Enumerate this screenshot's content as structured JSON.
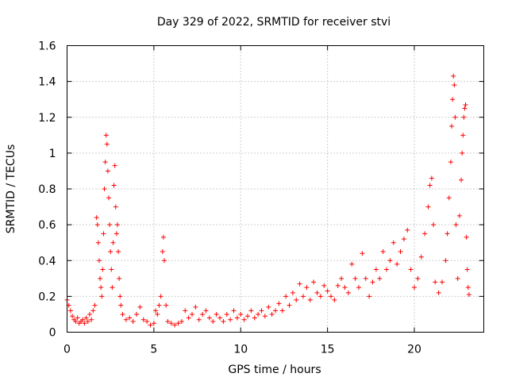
{
  "chart_data": {
    "type": "scatter",
    "title": "Day 329 of 2022, SRMTID for receiver stvi",
    "xlabel": "GPS time / hours",
    "ylabel": "SRMTID / TECUs",
    "xlim": [
      0,
      24
    ],
    "ylim": [
      0,
      1.6
    ],
    "xticks": [
      0,
      5,
      10,
      15,
      20
    ],
    "xtick_labels": [
      "0",
      "5",
      "10",
      "15",
      "20"
    ],
    "yticks": [
      0,
      0.2,
      0.4,
      0.6,
      0.8,
      1.0,
      1.2,
      1.4,
      1.6
    ],
    "ytick_labels": [
      "0",
      "0.2",
      "0.4",
      "0.6",
      "0.8",
      "1",
      "1.2",
      "1.4",
      "1.6"
    ],
    "grid": true,
    "marker": "+",
    "color": "#ff0000",
    "series": [
      {
        "name": "SRMTID",
        "points": [
          [
            0.0,
            0.18
          ],
          [
            0.1,
            0.15
          ],
          [
            0.2,
            0.12
          ],
          [
            0.3,
            0.09
          ],
          [
            0.4,
            0.07
          ],
          [
            0.5,
            0.06
          ],
          [
            0.6,
            0.08
          ],
          [
            0.7,
            0.05
          ],
          [
            0.8,
            0.06
          ],
          [
            0.9,
            0.07
          ],
          [
            1.0,
            0.05
          ],
          [
            1.1,
            0.08
          ],
          [
            1.2,
            0.06
          ],
          [
            1.3,
            0.1
          ],
          [
            1.4,
            0.07
          ],
          [
            1.5,
            0.12
          ],
          [
            1.6,
            0.15
          ],
          [
            1.7,
            0.64
          ],
          [
            1.75,
            0.6
          ],
          [
            1.8,
            0.5
          ],
          [
            1.85,
            0.4
          ],
          [
            1.9,
            0.3
          ],
          [
            1.95,
            0.25
          ],
          [
            2.0,
            0.2
          ],
          [
            2.05,
            0.35
          ],
          [
            2.1,
            0.55
          ],
          [
            2.15,
            0.8
          ],
          [
            2.2,
            0.95
          ],
          [
            2.25,
            1.1
          ],
          [
            2.3,
            1.05
          ],
          [
            2.35,
            0.9
          ],
          [
            2.4,
            0.75
          ],
          [
            2.45,
            0.6
          ],
          [
            2.5,
            0.45
          ],
          [
            2.55,
            0.35
          ],
          [
            2.6,
            0.25
          ],
          [
            2.65,
            0.5
          ],
          [
            2.7,
            0.82
          ],
          [
            2.75,
            0.93
          ],
          [
            2.8,
            0.7
          ],
          [
            2.85,
            0.55
          ],
          [
            2.9,
            0.6
          ],
          [
            2.95,
            0.45
          ],
          [
            3.0,
            0.3
          ],
          [
            3.05,
            0.2
          ],
          [
            3.1,
            0.15
          ],
          [
            3.2,
            0.1
          ],
          [
            3.4,
            0.07
          ],
          [
            3.6,
            0.08
          ],
          [
            3.8,
            0.06
          ],
          [
            4.0,
            0.1
          ],
          [
            4.2,
            0.14
          ],
          [
            4.4,
            0.07
          ],
          [
            4.6,
            0.06
          ],
          [
            4.8,
            0.04
          ],
          [
            5.0,
            0.05
          ],
          [
            5.1,
            0.12
          ],
          [
            5.2,
            0.1
          ],
          [
            5.3,
            0.15
          ],
          [
            5.4,
            0.2
          ],
          [
            5.5,
            0.45
          ],
          [
            5.55,
            0.53
          ],
          [
            5.6,
            0.4
          ],
          [
            5.7,
            0.15
          ],
          [
            5.8,
            0.06
          ],
          [
            6.0,
            0.05
          ],
          [
            6.2,
            0.04
          ],
          [
            6.4,
            0.05
          ],
          [
            6.6,
            0.06
          ],
          [
            6.8,
            0.12
          ],
          [
            7.0,
            0.08
          ],
          [
            7.2,
            0.1
          ],
          [
            7.4,
            0.14
          ],
          [
            7.6,
            0.07
          ],
          [
            7.8,
            0.1
          ],
          [
            8.0,
            0.12
          ],
          [
            8.2,
            0.08
          ],
          [
            8.4,
            0.06
          ],
          [
            8.6,
            0.1
          ],
          [
            8.8,
            0.08
          ],
          [
            9.0,
            0.06
          ],
          [
            9.2,
            0.1
          ],
          [
            9.4,
            0.07
          ],
          [
            9.6,
            0.12
          ],
          [
            9.8,
            0.08
          ],
          [
            10.0,
            0.1
          ],
          [
            10.2,
            0.07
          ],
          [
            10.4,
            0.09
          ],
          [
            10.6,
            0.12
          ],
          [
            10.8,
            0.08
          ],
          [
            11.0,
            0.1
          ],
          [
            11.2,
            0.12
          ],
          [
            11.4,
            0.09
          ],
          [
            11.6,
            0.14
          ],
          [
            11.8,
            0.1
          ],
          [
            12.0,
            0.12
          ],
          [
            12.2,
            0.16
          ],
          [
            12.4,
            0.12
          ],
          [
            12.6,
            0.2
          ],
          [
            12.8,
            0.15
          ],
          [
            13.0,
            0.22
          ],
          [
            13.2,
            0.18
          ],
          [
            13.4,
            0.27
          ],
          [
            13.6,
            0.2
          ],
          [
            13.8,
            0.25
          ],
          [
            14.0,
            0.18
          ],
          [
            14.2,
            0.28
          ],
          [
            14.4,
            0.22
          ],
          [
            14.6,
            0.2
          ],
          [
            14.8,
            0.26
          ],
          [
            15.0,
            0.23
          ],
          [
            15.2,
            0.2
          ],
          [
            15.4,
            0.18
          ],
          [
            15.6,
            0.26
          ],
          [
            15.8,
            0.3
          ],
          [
            16.0,
            0.25
          ],
          [
            16.2,
            0.22
          ],
          [
            16.4,
            0.38
          ],
          [
            16.6,
            0.3
          ],
          [
            16.8,
            0.25
          ],
          [
            17.0,
            0.44
          ],
          [
            17.2,
            0.3
          ],
          [
            17.4,
            0.2
          ],
          [
            17.6,
            0.28
          ],
          [
            17.8,
            0.35
          ],
          [
            18.0,
            0.3
          ],
          [
            18.2,
            0.45
          ],
          [
            18.4,
            0.35
          ],
          [
            18.6,
            0.4
          ],
          [
            18.8,
            0.5
          ],
          [
            19.0,
            0.38
          ],
          [
            19.2,
            0.45
          ],
          [
            19.4,
            0.52
          ],
          [
            19.6,
            0.57
          ],
          [
            19.8,
            0.35
          ],
          [
            20.0,
            0.25
          ],
          [
            20.2,
            0.3
          ],
          [
            20.4,
            0.42
          ],
          [
            20.6,
            0.55
          ],
          [
            20.8,
            0.7
          ],
          [
            20.9,
            0.82
          ],
          [
            21.0,
            0.86
          ],
          [
            21.1,
            0.6
          ],
          [
            21.2,
            0.28
          ],
          [
            21.4,
            0.22
          ],
          [
            21.6,
            0.28
          ],
          [
            21.8,
            0.4
          ],
          [
            21.9,
            0.55
          ],
          [
            22.0,
            0.75
          ],
          [
            22.1,
            0.95
          ],
          [
            22.15,
            1.15
          ],
          [
            22.2,
            1.3
          ],
          [
            22.25,
            1.43
          ],
          [
            22.3,
            1.38
          ],
          [
            22.35,
            1.2
          ],
          [
            22.4,
            0.6
          ],
          [
            22.5,
            0.3
          ],
          [
            22.6,
            0.65
          ],
          [
            22.7,
            0.85
          ],
          [
            22.75,
            1.0
          ],
          [
            22.8,
            1.1
          ],
          [
            22.85,
            1.2
          ],
          [
            22.9,
            1.25
          ],
          [
            22.95,
            1.27
          ],
          [
            23.0,
            0.53
          ],
          [
            23.05,
            0.35
          ],
          [
            23.1,
            0.25
          ],
          [
            23.15,
            0.21
          ]
        ]
      }
    ]
  }
}
